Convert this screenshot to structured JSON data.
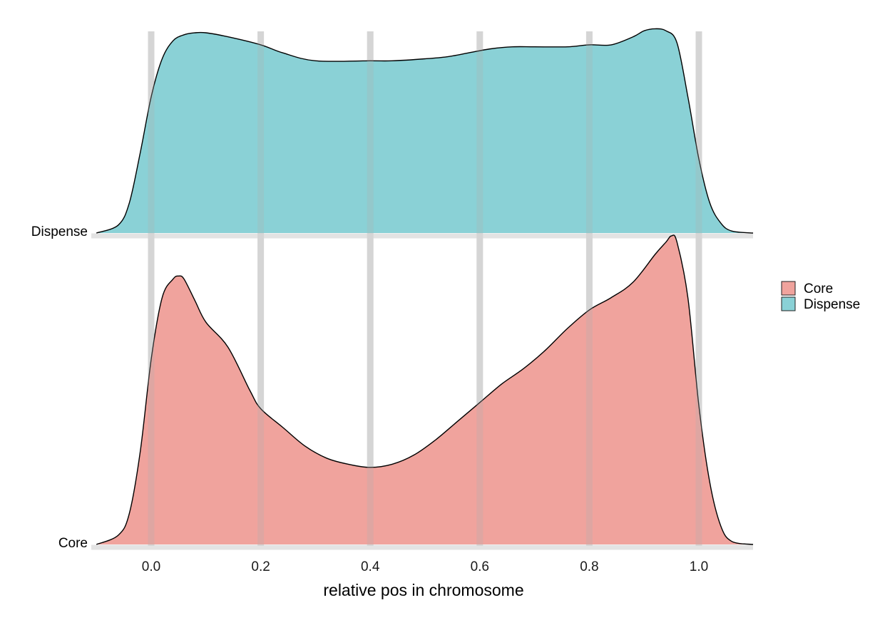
{
  "chart_data": {
    "type": "area",
    "subtype": "ridgeline-density",
    "title": "",
    "xlabel": "relative pos in chromosome",
    "ylabel": "",
    "xlim": [
      -0.1,
      1.1
    ],
    "x_ticks": [
      "0.0",
      "0.2",
      "0.4",
      "0.6",
      "0.8",
      "1.0"
    ],
    "grid": "vertical major gridlines",
    "legend": {
      "position": "right",
      "entries": [
        "Core",
        "Dispense"
      ]
    },
    "series": [
      {
        "name": "Dispense",
        "color": "#8ad1d6",
        "x": [
          -0.1,
          -0.06,
          -0.04,
          -0.02,
          0.0,
          0.02,
          0.04,
          0.06,
          0.08,
          0.1,
          0.14,
          0.2,
          0.24,
          0.3,
          0.4,
          0.44,
          0.5,
          0.54,
          0.58,
          0.62,
          0.66,
          0.7,
          0.76,
          0.8,
          0.84,
          0.88,
          0.9,
          0.92,
          0.94,
          0.96,
          0.98,
          1.0,
          1.02,
          1.04,
          1.06,
          1.1
        ],
        "density": [
          0.0,
          0.04,
          0.15,
          0.4,
          0.68,
          0.87,
          0.96,
          0.99,
          1.0,
          1.0,
          0.98,
          0.94,
          0.9,
          0.86,
          0.86,
          0.86,
          0.87,
          0.88,
          0.9,
          0.92,
          0.93,
          0.93,
          0.93,
          0.94,
          0.94,
          0.98,
          1.01,
          1.02,
          1.01,
          0.95,
          0.68,
          0.37,
          0.15,
          0.05,
          0.01,
          0.0
        ]
      },
      {
        "name": "Core",
        "color": "#f0a39d",
        "x": [
          -0.1,
          -0.06,
          -0.04,
          -0.02,
          0.0,
          0.02,
          0.04,
          0.05,
          0.06,
          0.08,
          0.1,
          0.14,
          0.18,
          0.2,
          0.24,
          0.28,
          0.32,
          0.36,
          0.4,
          0.44,
          0.48,
          0.52,
          0.56,
          0.6,
          0.64,
          0.68,
          0.72,
          0.76,
          0.8,
          0.84,
          0.88,
          0.92,
          0.94,
          0.95,
          0.96,
          0.98,
          1.0,
          1.02,
          1.04,
          1.06,
          1.1
        ],
        "density": [
          0.0,
          0.03,
          0.1,
          0.3,
          0.6,
          0.8,
          0.86,
          0.87,
          0.86,
          0.79,
          0.72,
          0.64,
          0.5,
          0.44,
          0.38,
          0.32,
          0.28,
          0.26,
          0.25,
          0.26,
          0.29,
          0.34,
          0.4,
          0.46,
          0.52,
          0.57,
          0.63,
          0.7,
          0.76,
          0.8,
          0.85,
          0.94,
          0.98,
          1.0,
          0.98,
          0.8,
          0.45,
          0.2,
          0.06,
          0.01,
          0.0
        ]
      }
    ],
    "rows": [
      "Dispense",
      "Core"
    ]
  },
  "colors": {
    "Dispense": "#8ad1d6",
    "Core": "#f0a39d",
    "grid": "#e3e3e3",
    "outline": "#000000"
  }
}
